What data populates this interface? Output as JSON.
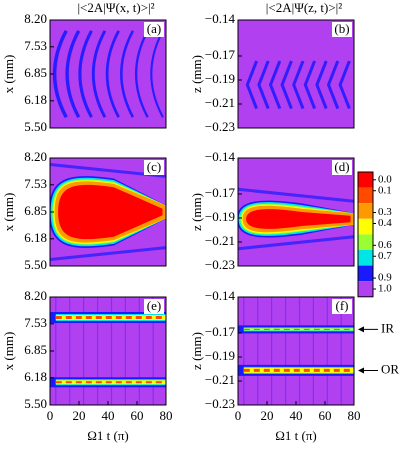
{
  "chart_data": [
    {
      "type": "heatmap",
      "title": "|<2A|Ψ(x, t)>|²",
      "label": "(a)",
      "ylabel": "x (mm)",
      "xlim": [
        0,
        80
      ],
      "ylim": [
        5.5,
        8.2
      ],
      "yticks": [
        {
          "value": 5.5,
          "label": "5.50"
        },
        6.18,
        6.85,
        7.53,
        {
          "value": 8.2,
          "label": "8.20"
        }
      ]
    },
    {
      "type": "heatmap",
      "title": "|<2A|Ψ(z, t)>|²",
      "label": "(b)",
      "ylabel": "z (mm)",
      "xlim": [
        0,
        80
      ],
      "ylim": [
        -0.23,
        -0.14
      ],
      "yticks": [
        {
          "value": -0.23,
          "label": "−0.23"
        },
        {
          "value": -0.21,
          "label": "−0.21"
        },
        {
          "value": -0.19,
          "label": "−0.19"
        },
        {
          "value": -0.17,
          "label": "−0.17"
        },
        {
          "value": -0.14,
          "label": "−0.14"
        }
      ]
    },
    {
      "type": "heatmap",
      "label": "(c)",
      "ylabel": "x (mm)",
      "xlim": [
        0,
        80
      ],
      "ylim": [
        5.5,
        8.2
      ],
      "yticks": [
        {
          "value": 5.5,
          "label": "5.50"
        },
        6.18,
        6.85,
        7.53,
        {
          "value": 8.2,
          "label": "8.20"
        }
      ]
    },
    {
      "type": "heatmap",
      "label": "(d)",
      "ylabel": "z (mm)",
      "xlim": [
        0,
        80
      ],
      "ylim": [
        -0.23,
        -0.14
      ],
      "yticks": [
        {
          "value": -0.23,
          "label": "−0.23"
        },
        {
          "value": -0.21,
          "label": "−0.21"
        },
        {
          "value": -0.19,
          "label": "−0.19"
        },
        {
          "value": -0.17,
          "label": "−0.17"
        },
        {
          "value": -0.14,
          "label": "−0.14"
        }
      ],
      "colorbar": {
        "ticks": [
          {
            "value": 0,
            "label": "0.0"
          },
          0.1,
          0.3,
          0.4,
          0.6,
          0.7,
          0.9,
          {
            "value": 1,
            "label": "1.0"
          }
        ],
        "colors": [
          "#ff0000",
          "#ff4a00",
          "#ff9900",
          "#ffff00",
          "#99ff33",
          "#00e6e6",
          "#1a1aff",
          "#b040f0"
        ]
      }
    },
    {
      "type": "heatmap",
      "label": "(e)",
      "ylabel": "x (mm)",
      "xlabel": "Ω1 t (π)",
      "xlim": [
        0,
        80
      ],
      "ylim": [
        5.5,
        8.2
      ],
      "xticks": [
        0,
        20,
        40,
        60,
        80
      ],
      "yticks": [
        {
          "value": 5.5,
          "label": "5.50"
        },
        6.18,
        6.85,
        7.53,
        {
          "value": 8.2,
          "label": "8.20"
        }
      ]
    },
    {
      "type": "heatmap",
      "label": "(f)",
      "ylabel": "z (mm)",
      "xlabel": "Ω1 t (π)",
      "xlim": [
        0,
        80
      ],
      "ylim": [
        -0.23,
        -0.14
      ],
      "xticks": [
        0,
        20,
        40,
        60,
        80
      ],
      "yticks": [
        {
          "value": -0.23,
          "label": "−0.23"
        },
        {
          "value": -0.21,
          "label": "−0.21"
        },
        {
          "value": -0.19,
          "label": "−0.19"
        },
        {
          "value": -0.17,
          "label": "−0.17"
        },
        {
          "value": -0.14,
          "label": "−0.14"
        }
      ],
      "annotations": [
        "IR",
        "OR"
      ]
    }
  ]
}
